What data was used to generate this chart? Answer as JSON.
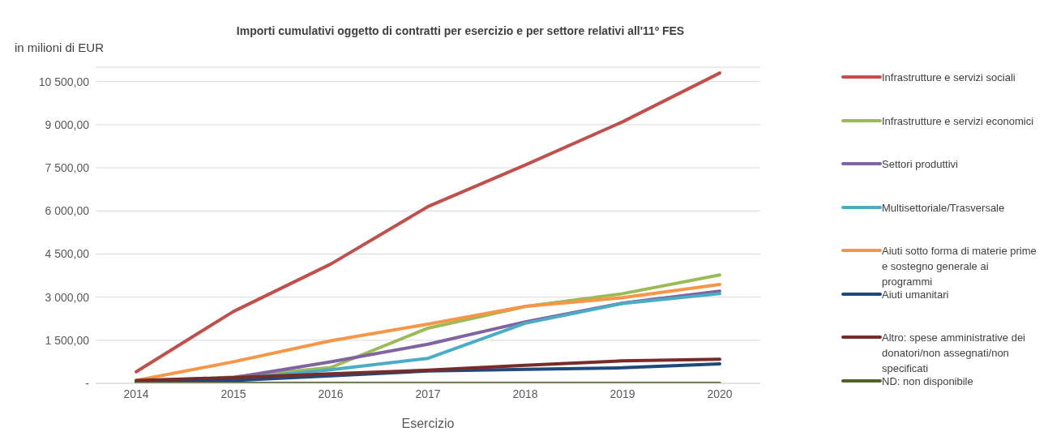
{
  "chart_data": {
    "type": "line",
    "title": "Importi cumulativi oggetto di contratti per esercizio e per settore relativi all'11º FES",
    "xlabel": "Esercizio",
    "ylabel": "in milioni di EUR",
    "categories": [
      "2014",
      "2015",
      "2016",
      "2017",
      "2018",
      "2019",
      "2020"
    ],
    "ylim": [
      0,
      11000
    ],
    "yticks": [
      {
        "value": 0,
        "label": "-"
      },
      {
        "value": 1500,
        "label": "1 500,00"
      },
      {
        "value": 3000,
        "label": "3 000,00"
      },
      {
        "value": 4500,
        "label": "4 500,00"
      },
      {
        "value": 6000,
        "label": "6 000,00"
      },
      {
        "value": 7500,
        "label": "7 500,00"
      },
      {
        "value": 9000,
        "label": "9 000,00"
      },
      {
        "value": 10500,
        "label": "10 500,00"
      }
    ],
    "grid": "y",
    "legend": "right",
    "marker": "none",
    "line_style": "solid",
    "series": [
      {
        "name": "Infrastrutture e servizi sociali",
        "color": "#c0504d",
        "values": [
          400,
          2500,
          4150,
          6150,
          7600,
          9100,
          10800
        ]
      },
      {
        "name": "Infrastrutture e servizi economici",
        "color": "#9bbb59",
        "values": [
          50,
          220,
          550,
          1920,
          2670,
          3120,
          3770
        ]
      },
      {
        "name": "Settori produttivi",
        "color": "#8064a2",
        "values": [
          50,
          200,
          750,
          1360,
          2140,
          2790,
          3210
        ]
      },
      {
        "name": "Multisettoriale/Trasversale",
        "color": "#4bacc6",
        "values": [
          30,
          150,
          470,
          870,
          2090,
          2780,
          3120
        ]
      },
      {
        "name": "Aiuti sotto forma di materie prime e sostegno generale ai programmi",
        "color": "#f79646",
        "values": [
          100,
          750,
          1480,
          2060,
          2680,
          2980,
          3440
        ]
      },
      {
        "name": "Aiuti umanitari",
        "color": "#1f497d",
        "values": [
          50,
          100,
          260,
          430,
          490,
          540,
          680
        ]
      },
      {
        "name": "Altro: spese amministrative dei donatori/non assegnati/non specificati",
        "color": "#772c2a",
        "values": [
          100,
          200,
          330,
          460,
          630,
          780,
          840
        ]
      },
      {
        "name": "ND: non disponibile",
        "color": "#4f6228",
        "values": [
          0,
          0,
          0,
          0,
          0,
          0,
          0
        ]
      }
    ]
  }
}
